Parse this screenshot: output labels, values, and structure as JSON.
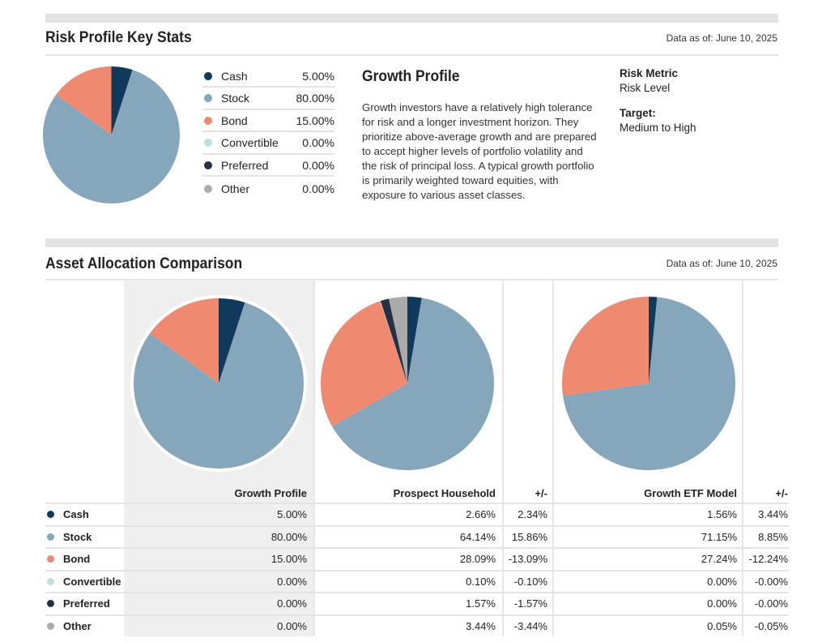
{
  "colors": {
    "cash": "#0f3a5c",
    "stock": "#86a6bc",
    "bond": "#ef8a70",
    "convertible": "#bfe0e0",
    "preferred": "#263244",
    "other": "#aaaaaa"
  },
  "key_stats": {
    "title": "Risk Profile Key Stats",
    "as_of": "Data as of: June 10, 2025",
    "legend": [
      {
        "key": "cash",
        "label": "Cash",
        "value": "5.00%",
        "pct": 5
      },
      {
        "key": "stock",
        "label": "Stock",
        "value": "80.00%",
        "pct": 80
      },
      {
        "key": "bond",
        "label": "Bond",
        "value": "15.00%",
        "pct": 15
      },
      {
        "key": "convertible",
        "label": "Convertible",
        "value": "0.00%",
        "pct": 0
      },
      {
        "key": "preferred",
        "label": "Preferred",
        "value": "0.00%",
        "pct": 0
      },
      {
        "key": "other",
        "label": "Other",
        "value": "0.00%",
        "pct": 0
      }
    ],
    "profile_title": "Growth Profile",
    "profile_description": "Growth investors have a relatively high tolerance for risk and a longer investment horizon. They prioritize above-average growth and are prepared to accept higher levels of portfolio volatility and the risk of principal loss. A typical growth portfolio is primarily weighted toward equities, with exposure to various asset classes.",
    "risk_metric_label": "Risk Metric",
    "risk_metric_value": "Risk Level",
    "target_label": "Target:",
    "target_value": "Medium to High"
  },
  "comparison": {
    "title": "Asset Allocation Comparison",
    "as_of": "Data as of: June 10, 2025",
    "headers": [
      "Growth Profile",
      "Prospect Household",
      "+/-",
      "Growth ETF Model",
      "+/-"
    ],
    "rows": [
      {
        "key": "cash",
        "label": "Cash",
        "growth": "5.00%",
        "household": "2.66%",
        "diff1": "2.34%",
        "etf": "1.56%",
        "diff2": "3.44%"
      },
      {
        "key": "stock",
        "label": "Stock",
        "growth": "80.00%",
        "household": "64.14%",
        "diff1": "15.86%",
        "etf": "71.15%",
        "diff2": "8.85%"
      },
      {
        "key": "bond",
        "label": "Bond",
        "growth": "15.00%",
        "household": "28.09%",
        "diff1": "-13.09%",
        "etf": "27.24%",
        "diff2": "-12.24%"
      },
      {
        "key": "convertible",
        "label": "Convertible",
        "growth": "0.00%",
        "household": "0.10%",
        "diff1": "-0.10%",
        "etf": "0.00%",
        "diff2": "-0.00%"
      },
      {
        "key": "preferred",
        "label": "Preferred",
        "growth": "0.00%",
        "household": "1.57%",
        "diff1": "-1.57%",
        "etf": "0.00%",
        "diff2": "-0.00%"
      },
      {
        "key": "other",
        "label": "Other",
        "growth": "0.00%",
        "household": "3.44%",
        "diff1": "-3.44%",
        "etf": "0.05%",
        "diff2": "-0.05%"
      }
    ],
    "pies": {
      "growth": [
        5,
        80,
        15,
        0,
        0,
        0
      ],
      "household": [
        2.66,
        64.14,
        28.09,
        0.1,
        1.57,
        3.44
      ],
      "etf": [
        1.56,
        71.15,
        27.24,
        0,
        0,
        0.05
      ]
    }
  }
}
